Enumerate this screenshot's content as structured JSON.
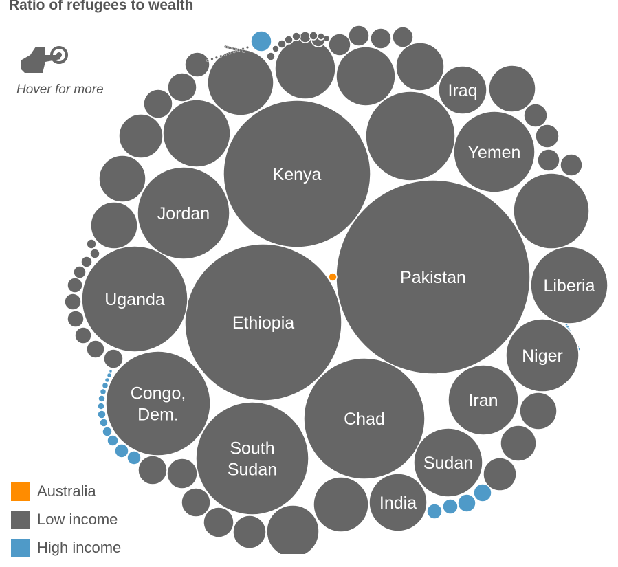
{
  "title": "Ratio of refugees to wealth",
  "hover_hint": {
    "text": "Hover for more",
    "icon": "pointing-hand-icon"
  },
  "legend": [
    {
      "label": "Australia",
      "color": "#ff8c00"
    },
    {
      "label": "Low income",
      "color": "#666666"
    },
    {
      "label": "High income",
      "color": "#4f9ac8"
    }
  ],
  "colors": {
    "low": "#666666",
    "high": "#4f9ac8",
    "australia": "#ff8c00",
    "text": "#555555"
  },
  "chart_data": {
    "type": "bubble",
    "title": "Ratio of refugees to wealth",
    "labeled_bubbles": [
      {
        "label": "Pakistan",
        "group": "Low income"
      },
      {
        "label": "Kenya",
        "group": "Low income"
      },
      {
        "label": "Ethiopia",
        "group": "Low income"
      },
      {
        "label": "Chad",
        "group": "Low income"
      },
      {
        "label": "South Sudan",
        "group": "Low income"
      },
      {
        "label": "Uganda",
        "group": "Low income"
      },
      {
        "label": "Jordan",
        "group": "Low income"
      },
      {
        "label": "Congo, Dem.",
        "group": "Low income"
      },
      {
        "label": "Yemen",
        "group": "Low income"
      },
      {
        "label": "Liberia",
        "group": "Low income"
      },
      {
        "label": "Niger",
        "group": "Low income"
      },
      {
        "label": "Iran",
        "group": "Low income"
      },
      {
        "label": "Sudan",
        "group": "Low income"
      },
      {
        "label": "India",
        "group": "Low income"
      },
      {
        "label": "Iraq",
        "group": "Low income"
      },
      {
        "label": "",
        "group": "Australia"
      }
    ]
  }
}
